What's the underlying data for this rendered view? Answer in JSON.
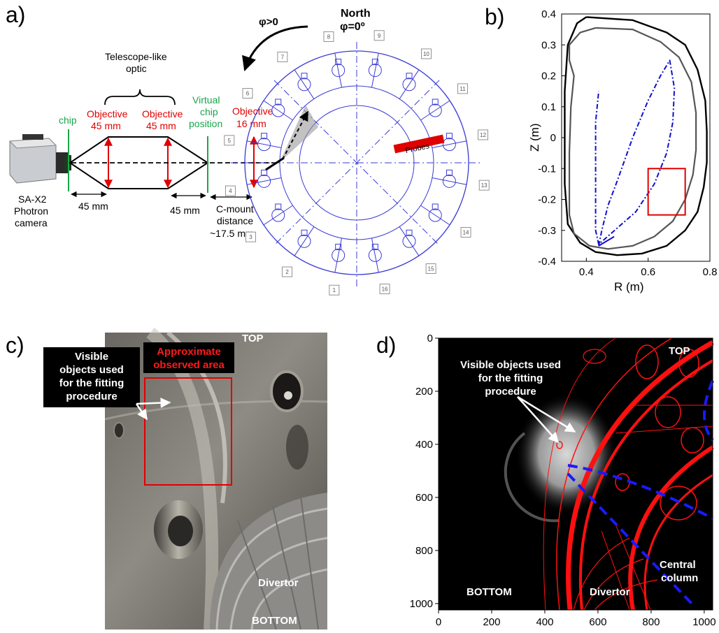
{
  "panels": {
    "a": "a)",
    "b": "b)",
    "c": "c)",
    "d": "d)"
  },
  "panel_a": {
    "chip": "chip",
    "telescope": [
      "Telescope-like",
      "optic"
    ],
    "objective1": [
      "Objective",
      "45 mm"
    ],
    "objective2": [
      "Objective",
      "45 mm"
    ],
    "virtual_chip": [
      "Virtual",
      "chip",
      "position"
    ],
    "objective3": [
      "Objective",
      "16 mm"
    ],
    "camera": [
      "SA-X2",
      "Photron",
      "camera"
    ],
    "dist1": "45 mm",
    "dist2": "45 mm",
    "cmount": [
      "C-mount",
      "distance",
      "~17.5 mm"
    ],
    "phi_pos": "φ>0",
    "north": [
      "North",
      "φ=0º"
    ],
    "probes": "Probes",
    "port_numbers": [
      "1",
      "2",
      "3",
      "4",
      "5",
      "6",
      "7",
      "8",
      "9",
      "10",
      "11",
      "12",
      "13",
      "14",
      "15",
      "16"
    ]
  },
  "chart_data": {
    "type": "line",
    "xlabel": "R (m)",
    "ylabel": "Z (m)",
    "xlim": [
      0.32,
      0.8
    ],
    "ylim": [
      -0.4,
      0.4
    ],
    "xticks": [
      "0.4",
      "0.6",
      "0.8"
    ],
    "yticks": [
      "0.4",
      "0.3",
      "0.2",
      "0.1",
      "0",
      "-0.1",
      "-0.2",
      "-0.3",
      "-0.4"
    ],
    "rectangle": {
      "r": [
        0.6,
        0.72
      ],
      "z": [
        -0.25,
        -0.1
      ],
      "color": "#e00000"
    },
    "series": [
      {
        "style": "vessel-outer",
        "color": "#000000",
        "r": [
          0.4,
          0.55,
          0.66,
          0.72,
          0.76,
          0.785,
          0.79,
          0.79,
          0.78,
          0.76,
          0.72,
          0.66,
          0.58,
          0.5,
          0.43,
          0.38,
          0.34,
          0.33,
          0.33,
          0.34,
          0.37,
          0.4
        ],
        "z": [
          0.39,
          0.38,
          0.34,
          0.3,
          0.22,
          0.12,
          0.02,
          -0.08,
          -0.16,
          -0.24,
          -0.3,
          -0.35,
          -0.375,
          -0.38,
          -0.37,
          -0.34,
          -0.28,
          -0.15,
          0.15,
          0.3,
          0.37,
          0.39
        ]
      },
      {
        "style": "first-wall",
        "color": "#555555",
        "r": [
          0.43,
          0.55,
          0.64,
          0.7,
          0.74,
          0.755,
          0.755,
          0.745,
          0.72,
          0.68,
          0.62,
          0.55,
          0.47,
          0.41,
          0.36,
          0.345,
          0.345,
          0.35,
          0.36,
          0.345,
          0.345,
          0.38,
          0.43
        ],
        "z": [
          0.355,
          0.35,
          0.31,
          0.26,
          0.18,
          0.08,
          -0.04,
          -0.12,
          -0.2,
          -0.27,
          -0.32,
          -0.35,
          -0.36,
          -0.35,
          -0.31,
          -0.25,
          -0.05,
          0.1,
          0.2,
          0.25,
          0.3,
          0.34,
          0.355
        ]
      },
      {
        "style": "separatrix",
        "color": "#1010cc",
        "r": [
          0.44,
          0.45,
          0.47,
          0.5,
          0.55,
          0.6,
          0.64,
          0.67,
          0.685,
          0.68,
          0.66,
          0.62,
          0.56,
          0.48,
          0.44,
          0.43,
          0.43,
          0.44
        ],
        "z": [
          -0.35,
          -0.3,
          -0.22,
          -0.14,
          0.0,
          0.12,
          0.2,
          0.25,
          0.16,
          0.05,
          -0.05,
          -0.15,
          -0.24,
          -0.31,
          -0.345,
          -0.3,
          0.05,
          0.15
        ]
      }
    ]
  },
  "panel_c": {
    "visible_objects": [
      "Visible",
      "objects used",
      "for the fitting",
      "procedure"
    ],
    "approx_area": [
      "Approximate",
      "observed area"
    ],
    "top": "TOP",
    "divertor": "Divertor",
    "bottom": "BOTTOM"
  },
  "panel_d": {
    "visible_objects": [
      "Visible objects used",
      "for the fitting",
      "procedure"
    ],
    "top": "TOP",
    "bottom": "BOTTOM",
    "divertor": "Divertor",
    "central_column": [
      "Central",
      "column"
    ],
    "xticks": [
      "0",
      "200",
      "400",
      "600",
      "800",
      "1000"
    ],
    "yticks": [
      "0",
      "200",
      "400",
      "600",
      "800",
      "1000"
    ]
  }
}
